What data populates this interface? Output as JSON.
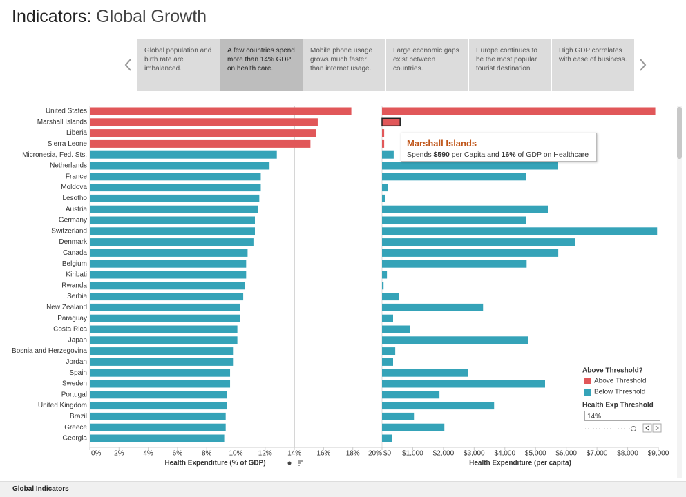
{
  "header": {
    "title_bold": "Indicators:",
    "title_rest": "Global Growth"
  },
  "story_points": [
    "Global population and birth rate are imbalanced.",
    "A few countries spend more than 14% GDP on health care.",
    "Mobile phone usage grows much faster than internet usage.",
    "Large economic gaps exist between countries.",
    "Europe continues to be the most popular tourist destination.",
    "High GDP correlates with ease of business."
  ],
  "chart_data": [
    {
      "type": "hbar",
      "x_label": "Health Expenditure (% of GDP)",
      "categories": [
        "United States",
        "Marshall Islands",
        "Liberia",
        "Sierra Leone",
        "Micronesia, Fed. Sts.",
        "Netherlands",
        "France",
        "Moldova",
        "Lesotho",
        "Austria",
        "Germany",
        "Switzerland",
        "Denmark",
        "Canada",
        "Belgium",
        "Kiribati",
        "Rwanda",
        "Serbia",
        "New Zealand",
        "Paraguay",
        "Costa Rica",
        "Japan",
        "Bosnia and Herzegovina",
        "Jordan",
        "Spain",
        "Sweden",
        "Portugal",
        "United Kingdom",
        "Brazil",
        "Greece",
        "Georgia"
      ],
      "values": [
        17.9,
        15.6,
        15.5,
        15.1,
        12.8,
        12.3,
        11.7,
        11.7,
        11.6,
        11.5,
        11.3,
        11.3,
        11.2,
        10.8,
        10.7,
        10.7,
        10.6,
        10.5,
        10.3,
        10.3,
        10.1,
        10.1,
        9.8,
        9.8,
        9.6,
        9.6,
        9.4,
        9.4,
        9.3,
        9.3,
        9.2
      ],
      "threshold": 14,
      "xlim": [
        0,
        20
      ],
      "xticks": [
        {
          "value": 0,
          "label": "0%"
        },
        {
          "value": 2,
          "label": "2%"
        },
        {
          "value": 4,
          "label": "4%"
        },
        {
          "value": 6,
          "label": "6%"
        },
        {
          "value": 8,
          "label": "8%"
        },
        {
          "value": 10,
          "label": "10%"
        },
        {
          "value": 12,
          "label": "12%"
        },
        {
          "value": 14,
          "label": "14%"
        },
        {
          "value": 16,
          "label": "16%"
        },
        {
          "value": 18,
          "label": "18%"
        },
        {
          "value": 20,
          "label": "20%"
        }
      ]
    },
    {
      "type": "hbar",
      "x_label": "Health Expenditure (per capita)",
      "values": [
        8900,
        590,
        70,
        70,
        380,
        5720,
        4690,
        200,
        110,
        5400,
        4690,
        8960,
        6280,
        5740,
        4710,
        160,
        50,
        540,
        3290,
        360,
        920,
        4750,
        430,
        360,
        2790,
        5310,
        1870,
        3650,
        1040,
        2030,
        320
      ],
      "xlim": [
        0,
        9000
      ],
      "xticks": [
        {
          "value": 0,
          "label": "$0"
        },
        {
          "value": 1000,
          "label": "$1,000"
        },
        {
          "value": 2000,
          "label": "$2,000"
        },
        {
          "value": 3000,
          "label": "$3,000"
        },
        {
          "value": 4000,
          "label": "$4,000"
        },
        {
          "value": 5000,
          "label": "$5,000"
        },
        {
          "value": 6000,
          "label": "$6,000"
        },
        {
          "value": 7000,
          "label": "$7,000"
        },
        {
          "value": 8000,
          "label": "$8,000"
        },
        {
          "value": 9000,
          "label": "$9,000"
        }
      ]
    }
  ],
  "legend": {
    "title": "Above Threshold?",
    "items": [
      {
        "name": "Above Threshold",
        "color": "#e15759"
      },
      {
        "name": "Below Threshold",
        "color": "#35a3b8"
      }
    ]
  },
  "control": {
    "title": "Health Exp Threshold",
    "value": "14%"
  },
  "tooltip": {
    "title": "Marshall Islands",
    "parts": [
      "Spends ",
      "$590",
      " per Capita and ",
      "16%",
      " of GDP on Healthcare"
    ]
  },
  "footer": {
    "tab": "Global Indicators"
  }
}
